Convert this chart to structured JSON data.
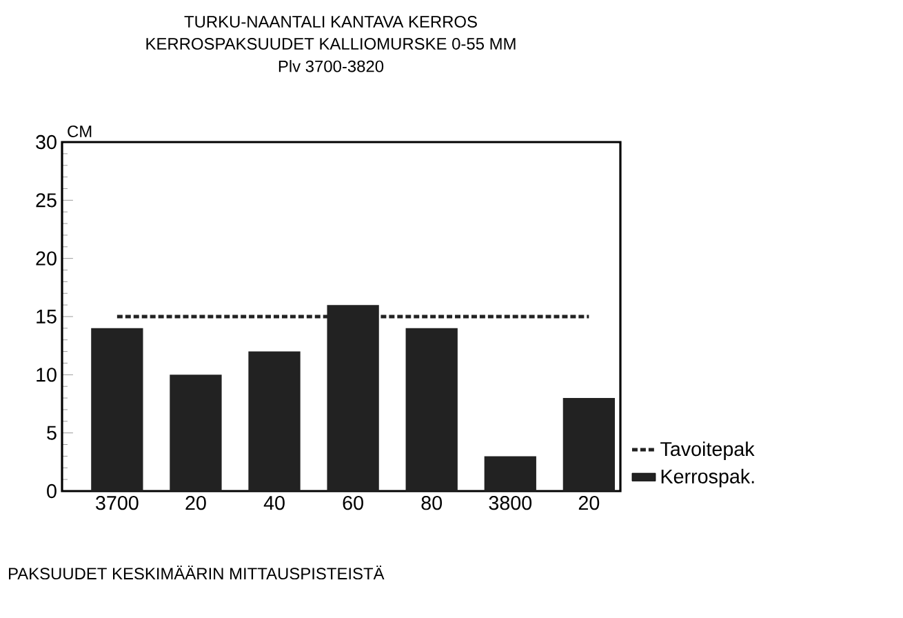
{
  "chart_data": {
    "type": "bar",
    "title": "TURKU-NAANTALI KANTAVA KERROS",
    "subtitle": "KERROSPAKSUUDET  KALLIOMURSKE 0-55 MM",
    "ylabel": "CM",
    "annotations": [
      "Plv  3700-3820",
      "PAKSUUDET KESKIMÄÄRIN MITTAUSPISTEISTÄ"
    ],
    "categories": [
      "3700",
      "20",
      "40",
      "60",
      "80",
      "3800",
      "20"
    ],
    "series": [
      {
        "name": "Tavoitepak",
        "type": "line",
        "line_style": "dashed",
        "color": "#222222",
        "values": [
          15,
          15,
          15,
          15,
          15,
          15,
          15
        ]
      },
      {
        "name": "Kerrospak.",
        "type": "bar",
        "color": "#222222",
        "values": [
          14,
          10,
          12,
          16,
          14,
          3,
          8
        ]
      }
    ],
    "ylim": [
      0,
      30
    ],
    "yticks": [
      0,
      5,
      10,
      15,
      20,
      25,
      30
    ],
    "grid": false,
    "legend": "bottom right",
    "marker": "none"
  }
}
